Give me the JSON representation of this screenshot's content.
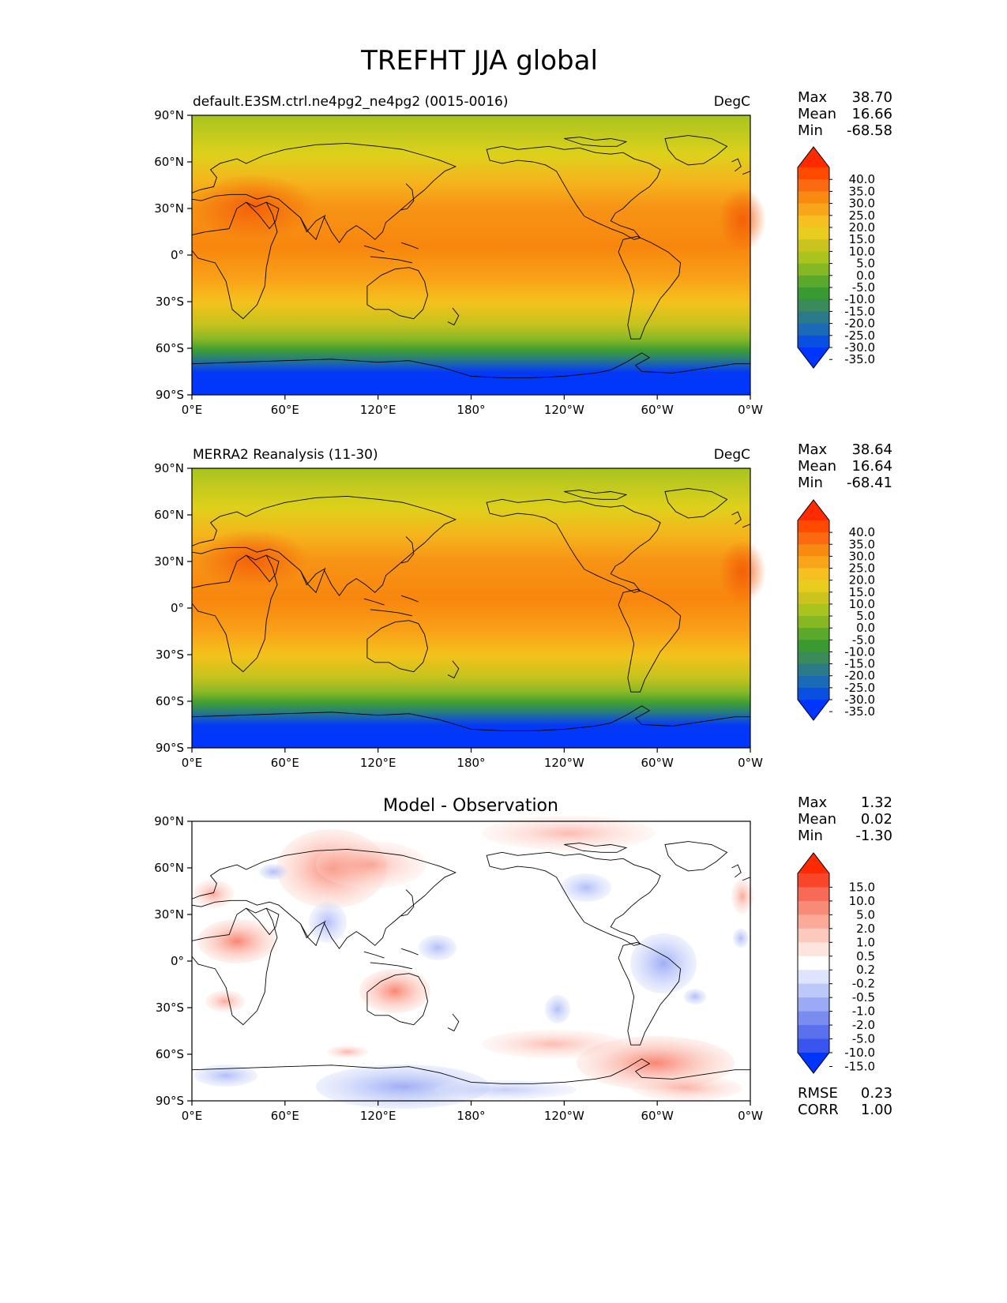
{
  "figure": {
    "title": "TREFHT JJA global"
  },
  "axes": {
    "lat_ticks": [
      "90°N",
      "60°N",
      "30°N",
      "0°",
      "30°S",
      "60°S",
      "90°S"
    ],
    "lon_ticks": [
      "0°E",
      "60°E",
      "120°E",
      "180°",
      "120°W",
      "60°W",
      "0°W"
    ]
  },
  "panels": [
    {
      "id": "model",
      "left_title": "default.E3SM.ctrl.ne4pg2_ne4pg2 (0015-0016)",
      "center_title": "",
      "units": "DegC",
      "stats": {
        "max_label": "Max",
        "max": "38.70",
        "mean_label": "Mean",
        "mean": "16.66",
        "min_label": "Min",
        "min": "-68.58"
      }
    },
    {
      "id": "obs",
      "left_title": "MERRA2 Reanalysis (11-30)",
      "center_title": "",
      "units": "DegC",
      "stats": {
        "max_label": "Max",
        "max": "38.64",
        "mean_label": "Mean",
        "mean": "16.64",
        "min_label": "Min",
        "min": "-68.41"
      }
    },
    {
      "id": "diff",
      "left_title": "",
      "center_title": "Model - Observation",
      "units": "",
      "stats": {
        "max_label": "Max",
        "max": "1.32",
        "mean_label": "Mean",
        "mean": "0.02",
        "min_label": "Min",
        "min": "-1.30"
      },
      "metrics": {
        "rmse_label": "RMSE",
        "rmse": "0.23",
        "corr_label": "CORR",
        "corr": "1.00"
      }
    }
  ],
  "colorbars": {
    "temperature": {
      "labels": [
        "40.0",
        "35.0",
        "30.0",
        "25.0",
        "20.0",
        "15.0",
        "10.0",
        "5.0",
        "0.0",
        "-5.0",
        "-10.0",
        "-15.0",
        "-20.0",
        "-25.0",
        "-30.0",
        "-35.0"
      ],
      "colors_top_to_bottom": [
        "#ff2a00",
        "#ff4a00",
        "#fb6a10",
        "#f98a10",
        "#f9a51a",
        "#f5c020",
        "#e8cd1e",
        "#ccc41e",
        "#aac41e",
        "#86b824",
        "#5aa82c",
        "#3a9a32",
        "#3a8a5a",
        "#2a7a8a",
        "#1a6ab8",
        "#0a50e0",
        "#0035ff"
      ]
    },
    "difference": {
      "labels": [
        "15.0",
        "10.0",
        "5.0",
        "2.0",
        "1.0",
        "0.5",
        "0.2",
        "-0.2",
        "-0.5",
        "-1.0",
        "-2.0",
        "-5.0",
        "-10.0",
        "-15.0"
      ],
      "colors_top_to_bottom": [
        "#ff2a00",
        "#f9452a",
        "#f76a55",
        "#f88a78",
        "#fbaa9a",
        "#fccabd",
        "#fde4dc",
        "#ffffff",
        "#dde4fb",
        "#bcc8f8",
        "#9aaaf4",
        "#7a8cf0",
        "#5a70ec",
        "#3a54f0",
        "#0035ff"
      ]
    }
  },
  "chart_data": [
    {
      "type": "heatmap",
      "title": "default.E3SM.ctrl.ne4pg2_ne4pg2 (0015-0016)",
      "variable": "TREFHT",
      "season": "JJA",
      "units": "DegC",
      "levels": [
        -35,
        -30,
        -25,
        -20,
        -15,
        -10,
        -5,
        0,
        5,
        10,
        15,
        20,
        25,
        30,
        35,
        40
      ],
      "lat_range": [
        -90,
        90
      ],
      "lon_range": [
        0,
        360
      ],
      "max": 38.7,
      "mean": 16.66,
      "min": -68.58
    },
    {
      "type": "heatmap",
      "title": "MERRA2 Reanalysis (11-30)",
      "variable": "TREFHT",
      "season": "JJA",
      "units": "DegC",
      "levels": [
        -35,
        -30,
        -25,
        -20,
        -15,
        -10,
        -5,
        0,
        5,
        10,
        15,
        20,
        25,
        30,
        35,
        40
      ],
      "lat_range": [
        -90,
        90
      ],
      "lon_range": [
        0,
        360
      ],
      "max": 38.64,
      "mean": 16.64,
      "min": -68.41
    },
    {
      "type": "heatmap",
      "title": "Model - Observation",
      "levels": [
        -15,
        -10,
        -5,
        -2,
        -1,
        -0.5,
        -0.2,
        0.2,
        0.5,
        1,
        2,
        5,
        10,
        15
      ],
      "lat_range": [
        -90,
        90
      ],
      "lon_range": [
        0,
        360
      ],
      "max": 1.32,
      "mean": 0.02,
      "min": -1.3,
      "rmse": 0.23,
      "corr": 1.0
    }
  ]
}
